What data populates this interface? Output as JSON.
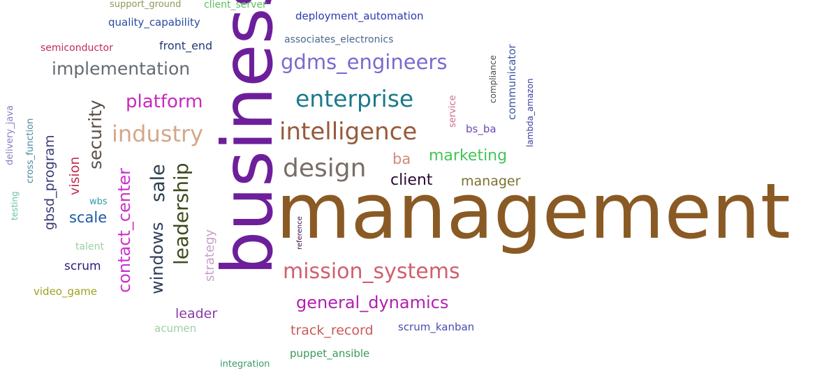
{
  "words": [
    {
      "text": "management",
      "color": "#8a5a25",
      "weight": 1.0
    },
    {
      "text": "business",
      "color": "#6d1f9b",
      "weight": 0.9
    },
    {
      "text": "mission_systems",
      "color": "#d06070",
      "weight": 0.32
    },
    {
      "text": "intelligence",
      "color": "#975a3a",
      "weight": 0.34
    },
    {
      "text": "enterprise",
      "color": "#1a7a8a",
      "weight": 0.34
    },
    {
      "text": "design",
      "color": "#7a6e68",
      "weight": 0.34
    },
    {
      "text": "industry",
      "color": "#d4a78a",
      "weight": 0.32
    },
    {
      "text": "gdms_engineers",
      "color": "#7a6ad0",
      "weight": 0.3
    },
    {
      "text": "implementation",
      "color": "#636b72",
      "weight": 0.26
    },
    {
      "text": "platform",
      "color": "#c82ac0",
      "weight": 0.28
    },
    {
      "text": "general_dynamics",
      "color": "#b020b0",
      "weight": 0.26
    },
    {
      "text": "leadership",
      "color": "#3c4c1c",
      "weight": 0.3
    },
    {
      "text": "sale",
      "color": "#2c4050",
      "weight": 0.3
    },
    {
      "text": "windows",
      "color": "#2f3e5a",
      "weight": 0.26
    },
    {
      "text": "contact_center",
      "color": "#cc30cc",
      "weight": 0.26
    },
    {
      "text": "security",
      "color": "#5a504a",
      "weight": 0.26
    },
    {
      "text": "marketing",
      "color": "#44c455",
      "weight": 0.22
    },
    {
      "text": "client",
      "color": "#2a0a35",
      "weight": 0.22
    },
    {
      "text": "scale",
      "color": "#1a5aa2",
      "weight": 0.22
    },
    {
      "text": "track_record",
      "color": "#c85a5a",
      "weight": 0.2
    },
    {
      "text": "ba",
      "color": "#d08a7a",
      "weight": 0.22
    },
    {
      "text": "manager",
      "color": "#7a7030",
      "weight": 0.2
    },
    {
      "text": "leader",
      "color": "#8a3aaa",
      "weight": 0.2
    },
    {
      "text": "vision",
      "color": "#c03050",
      "weight": 0.2
    },
    {
      "text": "gbsd_program",
      "color": "#3a3a78",
      "weight": 0.2
    },
    {
      "text": "strategy",
      "color": "#c8a0c8",
      "weight": 0.2
    },
    {
      "text": "scrum",
      "color": "#2a1a7a",
      "weight": 0.18
    },
    {
      "text": "front_end",
      "color": "#203a7a",
      "weight": 0.16
    },
    {
      "text": "quality_capability",
      "color": "#2a4aa2",
      "weight": 0.16
    },
    {
      "text": "deployment_automation",
      "color": "#2a3ab0",
      "weight": 0.16
    },
    {
      "text": "associates_electronics",
      "color": "#4a6a8a",
      "weight": 0.15
    },
    {
      "text": "scrum_kanban",
      "color": "#4a4ab0",
      "weight": 0.15
    },
    {
      "text": "puppet_ansible",
      "color": "#3a9a5a",
      "weight": 0.15
    },
    {
      "text": "video_game",
      "color": "#a0a020",
      "weight": 0.15
    },
    {
      "text": "talent",
      "color": "#9ad0a0",
      "weight": 0.15
    },
    {
      "text": "acumen",
      "color": "#9ad0a0",
      "weight": 0.15
    },
    {
      "text": "bs_ba",
      "color": "#6a4ab0",
      "weight": 0.15
    },
    {
      "text": "communicator",
      "color": "#3a5aa0",
      "weight": 0.15
    },
    {
      "text": "semiconductor",
      "color": "#c02a5a",
      "weight": 0.13
    },
    {
      "text": "support_ground",
      "color": "#8a9a5a",
      "weight": 0.13
    },
    {
      "text": "client_server",
      "color": "#5ac05a",
      "weight": 0.13
    },
    {
      "text": "integration",
      "color": "#3a9a6a",
      "weight": 0.13
    },
    {
      "text": "wbs",
      "color": "#2a9aaa",
      "weight": 0.13
    },
    {
      "text": "cross_function",
      "color": "#4a8aa0",
      "weight": 0.13
    },
    {
      "text": "delivery_java",
      "color": "#8a7ac0",
      "weight": 0.13
    },
    {
      "text": "testing",
      "color": "#6ac0a0",
      "weight": 0.12
    },
    {
      "text": "service",
      "color": "#d06a8a",
      "weight": 0.13
    },
    {
      "text": "compliance",
      "color": "#4a4a4a",
      "weight": 0.12
    },
    {
      "text": "lambda_amazon",
      "color": "#3a3aa0",
      "weight": 0.12
    },
    {
      "text": "reference",
      "color": "#3a0a4a",
      "weight": 0.1
    }
  ]
}
